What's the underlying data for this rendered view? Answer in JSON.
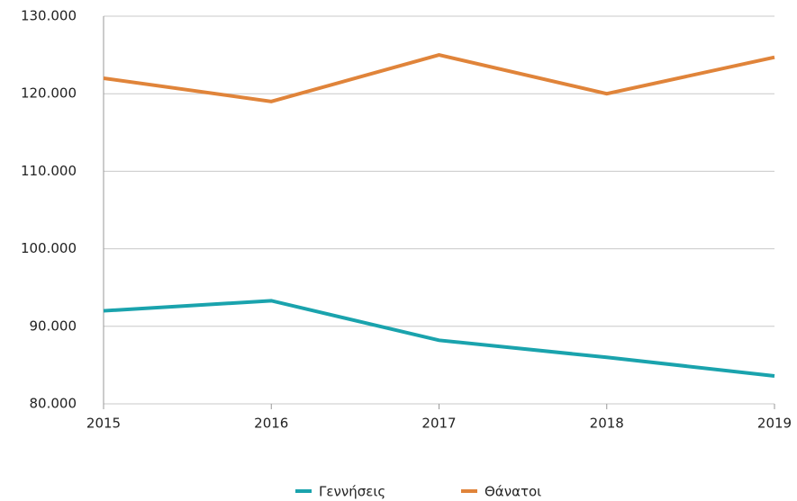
{
  "chart_data": {
    "type": "line",
    "x": [
      2015,
      2016,
      2017,
      2018,
      2019
    ],
    "xlim": [
      2015,
      2019
    ],
    "xticks": [
      2015,
      2016,
      2017,
      2018,
      2019
    ],
    "ylim": [
      80000,
      130000
    ],
    "yticks": [
      {
        "value": 80000,
        "label": "80.000"
      },
      {
        "value": 90000,
        "label": "90.000"
      },
      {
        "value": 100000,
        "label": "100.000"
      },
      {
        "value": 110000,
        "label": "110.000"
      },
      {
        "value": 120000,
        "label": "120.000"
      },
      {
        "value": 130000,
        "label": "130.000"
      }
    ],
    "grid": true,
    "legend": "bottom",
    "series": [
      {
        "name": "Γεννήσεις",
        "color": "#1aa3ad",
        "values": [
          92000,
          93300,
          88200,
          86000,
          83600
        ]
      },
      {
        "name": "Θάνατοι",
        "color": "#e0843a",
        "values": [
          122000,
          119000,
          125000,
          120000,
          124700
        ]
      }
    ]
  }
}
